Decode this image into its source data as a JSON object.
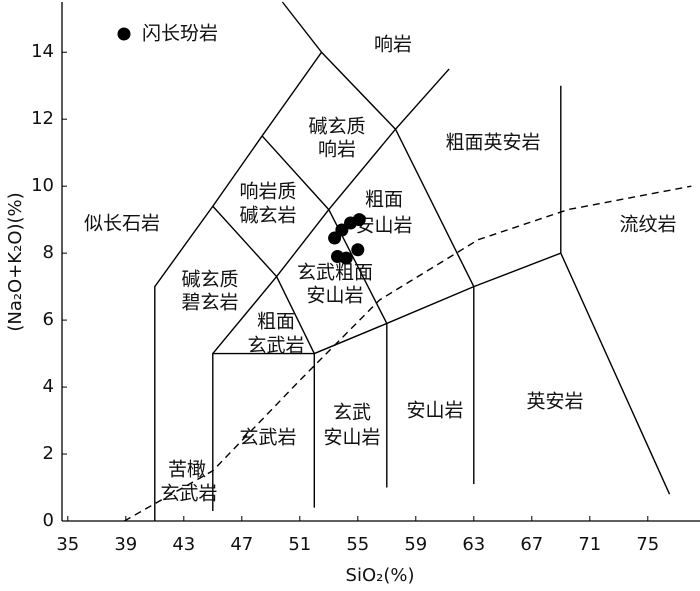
{
  "chart_data": {
    "type": "scatter",
    "xlabel": "SiO₂(%)",
    "ylabel": "(Na₂O+K₂O)(%)",
    "xlim": [
      34.6,
      78.6
    ],
    "ylim": [
      0,
      15.5
    ],
    "xticks": [
      35,
      39,
      43,
      47,
      51,
      55,
      59,
      63,
      67,
      71,
      75
    ],
    "yticks": [
      0,
      2,
      4,
      6,
      8,
      10,
      12,
      14
    ],
    "grid": false,
    "legend": "upper left",
    "series": [
      {
        "name": "闪长玢岩",
        "color": "#000000",
        "x": [
          53.9,
          54.5,
          55.1,
          53.4,
          53.6,
          54.2,
          55.0
        ],
        "y": [
          8.69,
          8.9,
          9.0,
          8.45,
          7.9,
          7.85,
          8.1
        ]
      }
    ],
    "boundaries": [
      {
        "x": [
          41,
          41,
          45,
          48.4,
          52.5,
          49.8
        ],
        "y": [
          0,
          7,
          9.4,
          11.5,
          14,
          15.5
        ]
      },
      {
        "x": [
          45,
          45,
          52,
          52
        ],
        "y": [
          0.3,
          5,
          5,
          0.4
        ]
      },
      {
        "x": [
          45,
          49.4,
          53,
          57.6,
          61.3
        ],
        "y": [
          5,
          7.3,
          9.3,
          11.7,
          13.5
        ]
      },
      {
        "x": [
          52,
          57,
          63,
          69,
          76.5
        ],
        "y": [
          5,
          5.9,
          7,
          8,
          0.8
        ]
      },
      {
        "x": [
          69,
          69
        ],
        "y": [
          8,
          13
        ]
      },
      {
        "x": [
          57,
          57
        ],
        "y": [
          1,
          5.9
        ]
      },
      {
        "x": [
          63,
          63
        ],
        "y": [
          1.1,
          7
        ]
      },
      {
        "x": [
          49.4,
          52
        ],
        "y": [
          7.3,
          5
        ]
      },
      {
        "x": [
          53,
          57
        ],
        "y": [
          9.3,
          5.9
        ]
      },
      {
        "x": [
          48.4,
          53
        ],
        "y": [
          11.5,
          9.3
        ]
      },
      {
        "x": [
          45,
          49.4
        ],
        "y": [
          9.4,
          7.3
        ]
      },
      {
        "x": [
          52.5,
          57.6
        ],
        "y": [
          14,
          11.7
        ]
      },
      {
        "x": [
          57.6,
          63
        ],
        "y": [
          11.7,
          7
        ]
      },
      {
        "x": [
          38.9,
          45,
          51,
          56.5,
          63.3,
          69.5,
          78
        ],
        "y": [
          0,
          1.5,
          4.2,
          6.6,
          8.4,
          9.3,
          10
        ],
        "dashed": true
      }
    ],
    "fields": [
      [
        "响岩"
      ],
      [
        "碱玄质",
        "响岩"
      ],
      [
        "粗面英安岩"
      ],
      [
        "响岩质",
        "碱玄岩"
      ],
      [
        "粗面",
        "安山岩"
      ],
      [
        "似长石岩"
      ],
      [
        "流纹岩"
      ],
      [
        "碱玄质",
        "碧玄岩"
      ],
      [
        "玄武粗面",
        "安山岩"
      ],
      [
        "粗面",
        "玄武岩"
      ],
      [
        "英安岩"
      ],
      [
        "玄武",
        "安山岩"
      ],
      [
        "安山岩"
      ],
      [
        "玄武岩"
      ],
      [
        "苦橄",
        "玄武岩"
      ]
    ]
  }
}
